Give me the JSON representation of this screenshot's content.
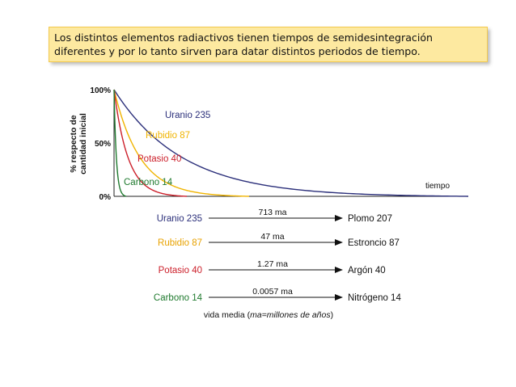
{
  "caption": {
    "line1": "Los distintos elementos radiactivos tienen tiempos de semidesintegración",
    "line2": "diferentes y por lo tanto sirven para datar distintos periodos de tiempo."
  },
  "chart_data": {
    "type": "line",
    "ylabel_line1": "% respecto de",
    "ylabel_line2": "cantidad inicial",
    "xlabel": "tiempo",
    "yticks": [
      "100%",
      "50%",
      "0%"
    ],
    "ylim": [
      0,
      100
    ],
    "series": [
      {
        "name": "Uranio 235",
        "color": "#2b2f7a",
        "half_life_ma": 713,
        "curve": "decay"
      },
      {
        "name": "Rubidio 87",
        "color": "#f0b400",
        "half_life_ma": 47,
        "curve": "decay"
      },
      {
        "name": "Potasio 40",
        "color": "#cc1f2a",
        "half_life_ma": 1.27,
        "curve": "decay"
      },
      {
        "name": "Carbono 14",
        "color": "#1f7a2e",
        "half_life_ma": 0.0057,
        "curve": "decay"
      }
    ]
  },
  "decay_table": {
    "rows": [
      {
        "parent": "Uranio 235",
        "half_life": "713 ma",
        "daughter": "Plomo 207",
        "color": "#2b2f7a"
      },
      {
        "parent": "Rubidio 87",
        "half_life": "47 ma",
        "daughter": "Estroncio 87",
        "color": "#e8a200"
      },
      {
        "parent": "Potasio 40",
        "half_life": "1.27 ma",
        "daughter": "Argón 40",
        "color": "#cc1f2a"
      },
      {
        "parent": "Carbono 14",
        "half_life": "0.0057 ma",
        "daughter": "Nitrógeno 14",
        "color": "#1f7a2e"
      }
    ],
    "footnote_prefix": "vida media (",
    "footnote_italic": "ma=millones de años",
    "footnote_suffix": ")"
  }
}
